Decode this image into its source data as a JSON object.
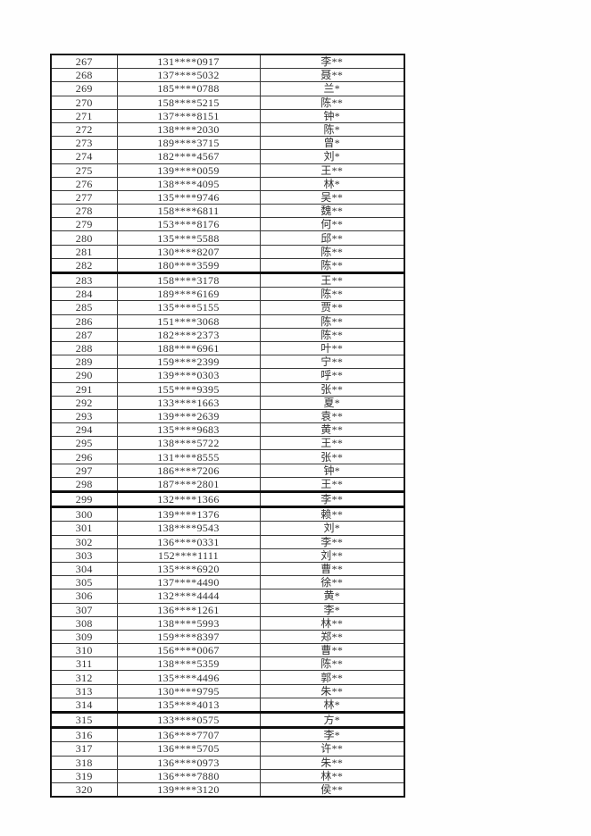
{
  "page": {
    "background_color": "#fefefe"
  },
  "table": {
    "columns": [
      {
        "key": "no",
        "semantic": "row-number"
      },
      {
        "key": "phone",
        "semantic": "masked-phone-number"
      },
      {
        "key": "name",
        "semantic": "masked-name"
      }
    ],
    "formatting": {
      "text_color": "#323232",
      "thin_border_color": "#3a3a3a",
      "thick_border_color": "#0e0e0e",
      "thick_top_border_rows": [
        "283",
        "299",
        "300",
        "315",
        "316"
      ]
    },
    "rows": [
      {
        "no": "267",
        "phone": "131****0917",
        "name": "李**"
      },
      {
        "no": "268",
        "phone": "137****5032",
        "name": "聂**"
      },
      {
        "no": "269",
        "phone": "185****0788",
        "name": "兰*"
      },
      {
        "no": "270",
        "phone": "158****5215",
        "name": "陈**"
      },
      {
        "no": "271",
        "phone": "137****8151",
        "name": "钟*"
      },
      {
        "no": "272",
        "phone": "138****2030",
        "name": "陈*"
      },
      {
        "no": "273",
        "phone": "189****3715",
        "name": "曾*"
      },
      {
        "no": "274",
        "phone": "182****4567",
        "name": "刘*"
      },
      {
        "no": "275",
        "phone": "139****0059",
        "name": "王**"
      },
      {
        "no": "276",
        "phone": "138****4095",
        "name": "林*"
      },
      {
        "no": "277",
        "phone": "135****9746",
        "name": "吴**"
      },
      {
        "no": "278",
        "phone": "158****6811",
        "name": "魏**"
      },
      {
        "no": "279",
        "phone": "153****8176",
        "name": "何**"
      },
      {
        "no": "280",
        "phone": "135****5588",
        "name": "邱**"
      },
      {
        "no": "281",
        "phone": "130****8207",
        "name": "陈**"
      },
      {
        "no": "282",
        "phone": "180****3599",
        "name": "陈**"
      },
      {
        "no": "283",
        "phone": "158****3178",
        "name": "王**"
      },
      {
        "no": "284",
        "phone": "189****6169",
        "name": "陈**"
      },
      {
        "no": "285",
        "phone": "135****5155",
        "name": "贾**"
      },
      {
        "no": "286",
        "phone": "151****3068",
        "name": "陈**"
      },
      {
        "no": "287",
        "phone": "182****2373",
        "name": "陈**"
      },
      {
        "no": "288",
        "phone": "188****6961",
        "name": "叶**"
      },
      {
        "no": "289",
        "phone": "159****2399",
        "name": "宁**"
      },
      {
        "no": "290",
        "phone": "139****0303",
        "name": "呼**"
      },
      {
        "no": "291",
        "phone": "155****9395",
        "name": "张**"
      },
      {
        "no": "292",
        "phone": "133****1663",
        "name": "夏*"
      },
      {
        "no": "293",
        "phone": "139****2639",
        "name": "袁**"
      },
      {
        "no": "294",
        "phone": "135****9683",
        "name": "黄**"
      },
      {
        "no": "295",
        "phone": "138****5722",
        "name": "王**"
      },
      {
        "no": "296",
        "phone": "131****8555",
        "name": "张**"
      },
      {
        "no": "297",
        "phone": "186****7206",
        "name": "钟*"
      },
      {
        "no": "298",
        "phone": "187****2801",
        "name": "王**"
      },
      {
        "no": "299",
        "phone": "132****1366",
        "name": "李**"
      },
      {
        "no": "300",
        "phone": "139****1376",
        "name": "赖**"
      },
      {
        "no": "301",
        "phone": "138****9543",
        "name": "刘*"
      },
      {
        "no": "302",
        "phone": "136****0331",
        "name": "李**"
      },
      {
        "no": "303",
        "phone": "152****1111",
        "name": "刘**"
      },
      {
        "no": "304",
        "phone": "135****6920",
        "name": "曹**"
      },
      {
        "no": "305",
        "phone": "137****4490",
        "name": "徐**"
      },
      {
        "no": "306",
        "phone": "132****4444",
        "name": "黄*"
      },
      {
        "no": "307",
        "phone": "136****1261",
        "name": "李*"
      },
      {
        "no": "308",
        "phone": "138****5993",
        "name": "林**"
      },
      {
        "no": "309",
        "phone": "159****8397",
        "name": "郑**"
      },
      {
        "no": "310",
        "phone": "156****0067",
        "name": "曹**"
      },
      {
        "no": "311",
        "phone": "138****5359",
        "name": "陈**"
      },
      {
        "no": "312",
        "phone": "135****4496",
        "name": "郭**"
      },
      {
        "no": "313",
        "phone": "130****9795",
        "name": "朱**"
      },
      {
        "no": "314",
        "phone": "135****4013",
        "name": "林*"
      },
      {
        "no": "315",
        "phone": "133****0575",
        "name": "方*"
      },
      {
        "no": "316",
        "phone": "136****7707",
        "name": "李*"
      },
      {
        "no": "317",
        "phone": "136****5705",
        "name": "许**"
      },
      {
        "no": "318",
        "phone": "136****0973",
        "name": "朱**"
      },
      {
        "no": "319",
        "phone": "136****7880",
        "name": "林**"
      },
      {
        "no": "320",
        "phone": "139****3120",
        "name": "侯**"
      }
    ]
  }
}
